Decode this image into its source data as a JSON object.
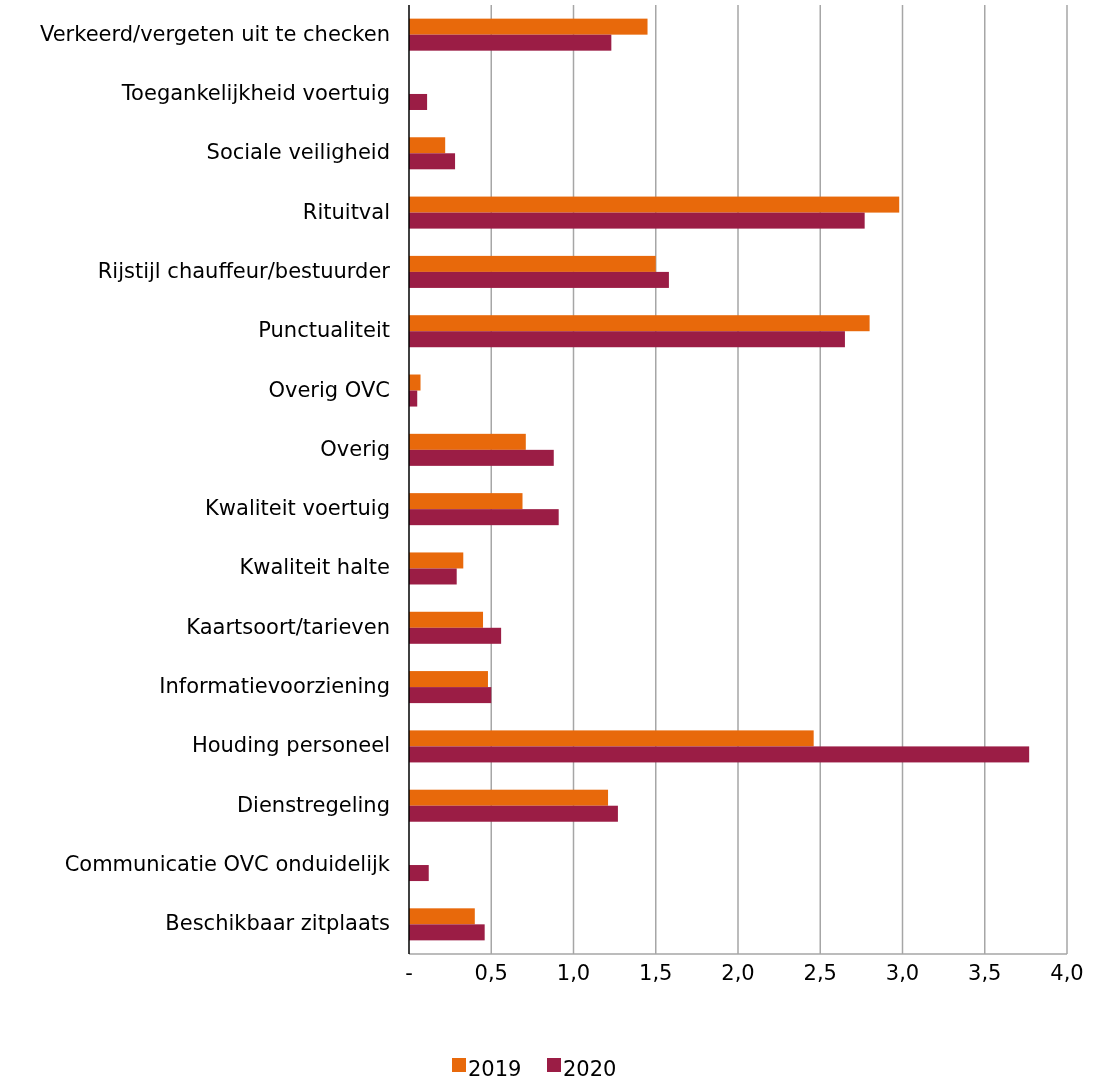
{
  "chart_data": {
    "type": "bar",
    "orientation": "horizontal",
    "categories": [
      "Verkeerd/vergeten uit te checken",
      "Toegankelijkheid voertuig",
      "Sociale veiligheid",
      "Rituitval",
      "Rijstijl chauffeur/bestuurder",
      "Punctualiteit",
      "Overig OVC",
      "Overig",
      "Kwaliteit voertuig",
      "Kwaliteit halte",
      "Kaartsoort/tarieven",
      "Informatievoorziening",
      "Houding personeel",
      "Dienstregeling",
      "Communicatie OVC onduidelijk",
      "Beschikbaar zitplaats"
    ],
    "series": [
      {
        "name": "2019",
        "color": "#e8690b",
        "values": [
          1.45,
          null,
          0.22,
          2.98,
          1.5,
          2.8,
          0.07,
          0.71,
          0.69,
          0.33,
          0.45,
          0.48,
          2.46,
          1.21,
          null,
          0.4
        ]
      },
      {
        "name": "2020",
        "color": "#9b1d45",
        "values": [
          1.23,
          0.11,
          0.28,
          2.77,
          1.58,
          2.65,
          0.05,
          0.88,
          0.91,
          0.29,
          0.56,
          0.5,
          3.77,
          1.27,
          0.12,
          0.46
        ]
      }
    ],
    "xlim": [
      0,
      4
    ],
    "xticks": [
      {
        "value": 0,
        "label": "-"
      },
      {
        "value": 0.5,
        "label": "0,5"
      },
      {
        "value": 1,
        "label": "1,0"
      },
      {
        "value": 1.5,
        "label": "1,5"
      },
      {
        "value": 2,
        "label": "2,0"
      },
      {
        "value": 2.5,
        "label": "2,5"
      },
      {
        "value": 3,
        "label": "3,0"
      },
      {
        "value": 3.5,
        "label": "3,5"
      },
      {
        "value": 4,
        "label": "4,0"
      }
    ],
    "grid": "x",
    "legend": "bottom"
  }
}
